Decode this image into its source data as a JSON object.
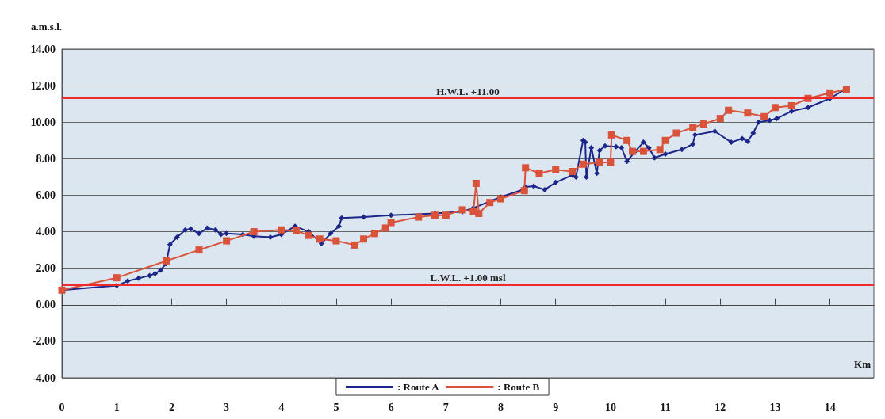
{
  "chart_data": {
    "type": "line",
    "xlabel": "Km",
    "ylabel": "a.m.s.l.",
    "xlim": [
      0,
      14.8
    ],
    "xticks": [
      0,
      1,
      2,
      3,
      4,
      5,
      6,
      7,
      8,
      9,
      10,
      11,
      12,
      13,
      14
    ],
    "ylim": [
      -4,
      14
    ],
    "yticks": [
      {
        "value": -4,
        "label": "-4.00"
      },
      {
        "value": -2,
        "label": "-2.00"
      },
      {
        "value": 0,
        "label": "0.00"
      },
      {
        "value": 2,
        "label": "2.00"
      },
      {
        "value": 4,
        "label": "4.00"
      },
      {
        "value": 6,
        "label": "6.00"
      },
      {
        "value": 8,
        "label": "8.00"
      },
      {
        "value": 10,
        "label": "10.00"
      },
      {
        "value": 12,
        "label": "12.00"
      },
      {
        "value": 14,
        "label": "14.00"
      }
    ],
    "grid": "y",
    "legend": "bottom",
    "ref_lines": [
      {
        "axis": "y",
        "value": 11.3,
        "label": "H.W.L. +11.00",
        "color": "#ee2a2a"
      },
      {
        "axis": "y",
        "value": 1.1,
        "label": "L.W.L. +1.00 msl",
        "color": "#ee2a2a"
      }
    ],
    "series": [
      {
        "name": ": Route A",
        "color": "#1c2688",
        "marker": "diamond",
        "x": [
          0,
          1,
          1.2,
          1.4,
          1.6,
          1.7,
          1.8,
          1.9,
          1.97,
          2.1,
          2.25,
          2.35,
          2.5,
          2.65,
          2.8,
          2.9,
          3.0,
          3.3,
          3.5,
          3.8,
          4.0,
          4.25,
          4.5,
          4.73,
          4.9,
          5.05,
          5.1,
          5.5,
          6.0,
          6.8,
          7.3,
          7.5,
          8.0,
          8.4,
          8.45,
          8.6,
          8.8,
          9.0,
          9.3,
          9.37,
          9.5,
          9.54,
          9.56,
          9.65,
          9.75,
          9.8,
          9.9,
          10.1,
          10.2,
          10.3,
          10.45,
          10.6,
          10.7,
          10.8,
          11.0,
          11.3,
          11.5,
          11.54,
          11.9,
          12.2,
          12.4,
          12.5,
          12.6,
          12.7,
          12.9,
          13.03,
          13.3,
          13.6,
          14.0,
          14.28
        ],
        "values": [
          0.8,
          1.05,
          1.3,
          1.45,
          1.6,
          1.7,
          1.9,
          2.25,
          3.3,
          3.7,
          4.1,
          4.15,
          3.9,
          4.2,
          4.1,
          3.85,
          3.9,
          3.85,
          3.75,
          3.7,
          3.85,
          4.3,
          4.0,
          3.35,
          3.9,
          4.3,
          4.75,
          4.8,
          4.9,
          5.0,
          5.1,
          5.3,
          5.9,
          6.3,
          6.45,
          6.5,
          6.3,
          6.7,
          7.1,
          7.0,
          9.0,
          8.9,
          7.0,
          8.6,
          7.2,
          8.45,
          8.7,
          8.65,
          8.6,
          7.85,
          8.4,
          8.9,
          8.6,
          8.05,
          8.25,
          8.5,
          8.8,
          9.3,
          9.5,
          8.9,
          9.1,
          8.95,
          9.4,
          10.0,
          10.1,
          10.2,
          10.6,
          10.8,
          11.3,
          11.8
        ]
      },
      {
        "name": ": Route B",
        "color": "#d9533b",
        "marker": "square",
        "x": [
          0,
          1,
          1.9,
          2.5,
          3.0,
          3.5,
          4.0,
          4.27,
          4.5,
          4.7,
          5.0,
          5.34,
          5.5,
          5.7,
          5.9,
          6.0,
          6.5,
          6.8,
          7.0,
          7.3,
          7.5,
          7.55,
          7.6,
          7.8,
          8.0,
          8.43,
          8.45,
          8.7,
          9.0,
          9.3,
          9.5,
          9.8,
          10.0,
          10.02,
          10.3,
          10.4,
          10.6,
          10.9,
          11.0,
          11.2,
          11.5,
          11.7,
          12.0,
          12.15,
          12.5,
          12.8,
          13.0,
          13.3,
          13.6,
          14.0,
          14.3
        ],
        "values": [
          0.8,
          1.48,
          2.4,
          3.0,
          3.5,
          4.0,
          4.1,
          4.05,
          3.8,
          3.6,
          3.5,
          3.27,
          3.6,
          3.9,
          4.2,
          4.5,
          4.8,
          4.9,
          4.9,
          5.2,
          5.1,
          6.65,
          5.0,
          5.6,
          5.8,
          6.25,
          7.5,
          7.2,
          7.4,
          7.3,
          7.7,
          7.8,
          7.8,
          9.3,
          9.0,
          8.4,
          8.4,
          8.5,
          9.0,
          9.4,
          9.7,
          9.9,
          10.2,
          10.65,
          10.5,
          10.3,
          10.8,
          10.9,
          11.3,
          11.6,
          11.8
        ]
      }
    ]
  }
}
